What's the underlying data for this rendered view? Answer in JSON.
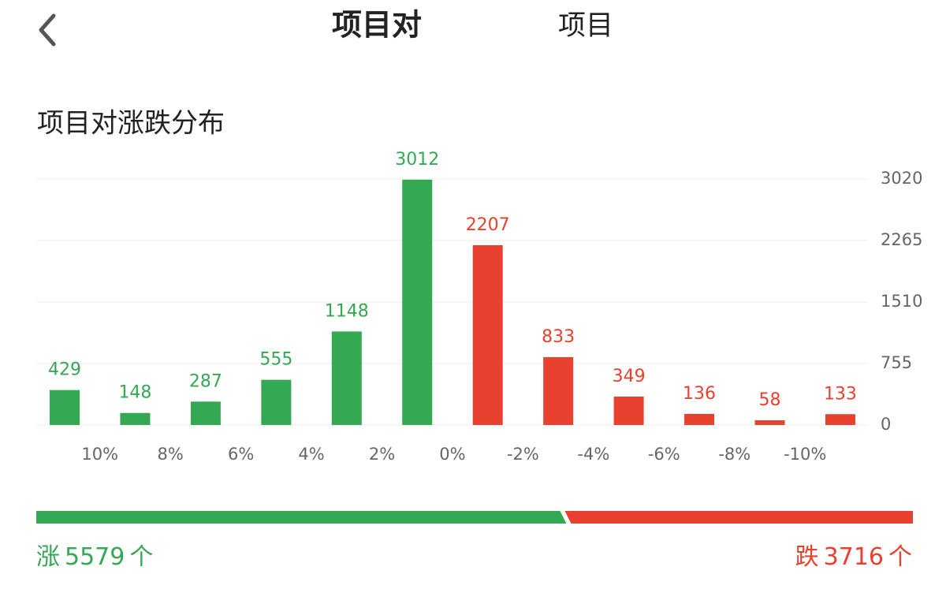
{
  "header": {
    "title": "项目对",
    "tab": "项目"
  },
  "chart_data": {
    "type": "bar",
    "title": "项目对涨跌分布",
    "values": [
      429,
      148,
      287,
      555,
      1148,
      3012,
      2207,
      833,
      349,
      136,
      58,
      133
    ],
    "colors": [
      "#34a853",
      "#34a853",
      "#34a853",
      "#34a853",
      "#34a853",
      "#34a853",
      "#e8412f",
      "#e8412f",
      "#e8412f",
      "#e8412f",
      "#e8412f",
      "#e8412f"
    ],
    "x_labels": [
      "10%",
      "8%",
      "6%",
      "4%",
      "2%",
      "0%",
      "-2%",
      "-4%",
      "-6%",
      "-8%",
      "-10%"
    ],
    "ylim": [
      0,
      3020
    ],
    "yticks": [
      0,
      755,
      1510,
      2265,
      3020
    ],
    "grid": true
  },
  "summary": {
    "up": {
      "label": "涨",
      "count": 5579,
      "unit": "个",
      "color": "#34a853"
    },
    "down": {
      "label": "跌",
      "count": 3716,
      "unit": "个",
      "color": "#e8412f"
    }
  }
}
